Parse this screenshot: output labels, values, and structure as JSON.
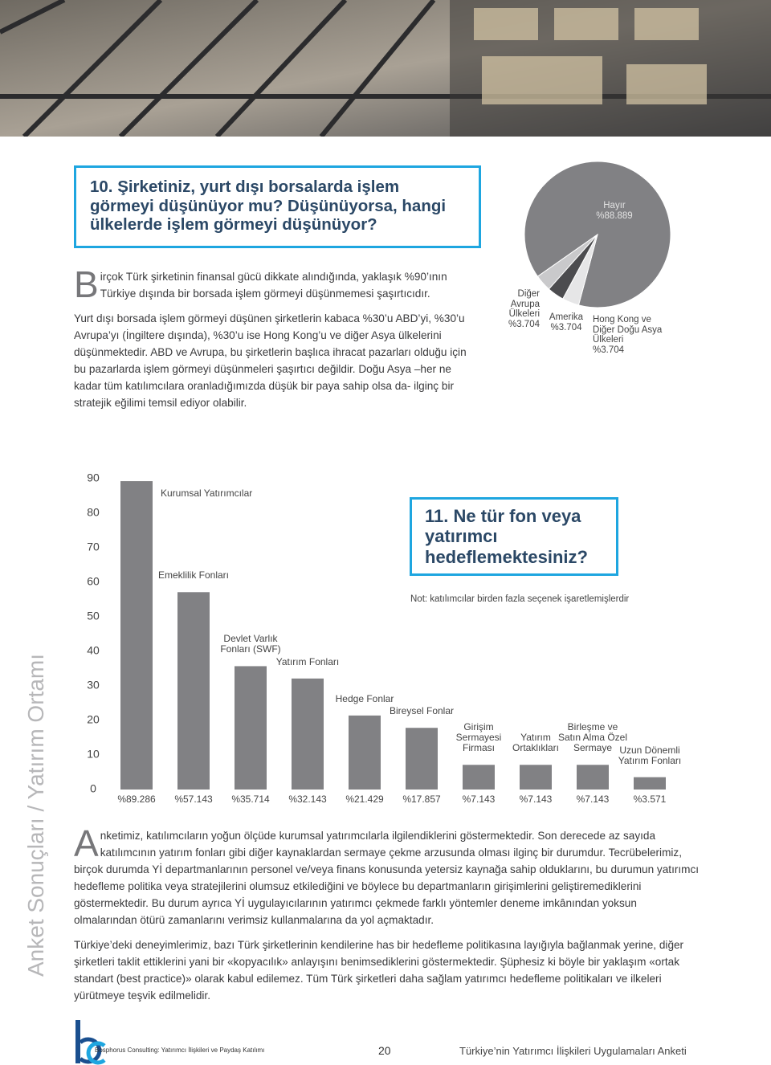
{
  "question10": {
    "title": "10. Şirketiniz, yurt dışı borsalarda işlem görmeyi düşünüyor mu? Düşünüyorsa, hangi ülkelerde işlem görmeyi düşünüyor?",
    "paragraphs": [
      "Birçok Türk şirketinin finansal gücü dikkate alındığında, yaklaşık %90’ının Türkiye dışında bir borsada işlem görmeyi düşünmemesi şaşırtıcıdır.",
      "Yurt dışı borsada işlem görmeyi düşünen şirketlerin kabaca %30’u ABD’yi, %30’u Avrupa’yı (İngiltere dışında), %30’u ise Hong Kong’u ve diğer Asya ülkelerini düşünmektedir. ABD ve Avrupa, bu şirketlerin başlıca ihracat pazarları olduğu için bu pazarlarda işlem görmeyi düşünmeleri şaşırtıcı değildir. Doğu Asya –her ne kadar tüm katılımcılara oranladığımızda düşük bir paya sahip olsa da- ilginç bir stratejik eğilimi temsil ediyor olabilir."
    ]
  },
  "chart_data": [
    {
      "type": "pie",
      "categories": [
        "Hayır",
        "Diğer Avrupa Ülkeleri",
        "Amerika",
        "Hong Kong ve Diğer Doğu Asya Ülkeleri"
      ],
      "values": [
        88.889,
        3.704,
        3.704,
        3.704
      ],
      "value_labels": [
        "%88.889",
        "%3.704",
        "%3.704",
        "%3.704"
      ],
      "colors": [
        "#818184",
        "#c9c9cb",
        "#4c4c4f",
        "#e6e6e7"
      ]
    },
    {
      "type": "bar",
      "categories": [
        "Kurumsal Yatırımcılar",
        "Emeklilik Fonları",
        "Devlet Varlık Fonları (SWF)",
        "Yatırım Fonları",
        "Hedge Fonlar",
        "Bireysel Fonlar",
        "Girişim Sermayesi Firması",
        "Yatırım Ortaklıkları",
        "Birleşme ve Satın Alma Özel Sermaye",
        "Uzun Dönemli Yatırım Fonları"
      ],
      "values": [
        89.286,
        57.143,
        35.714,
        32.143,
        21.429,
        17.857,
        7.143,
        7.143,
        7.143,
        3.571
      ],
      "value_labels": [
        "%89.286",
        "%57.143",
        "%35.714",
        "%32.143",
        "%21.429",
        "%17.857",
        "%7.143",
        "%7.143",
        "%7.143",
        "%3.571"
      ],
      "color": "#818184",
      "ylim": [
        0,
        90
      ],
      "yticks": [
        0,
        10,
        20,
        30,
        40,
        50,
        60,
        70,
        80,
        90
      ]
    }
  ],
  "question11": {
    "title": "11. Ne tür fon veya yatırımcı hedeflemektesiniz?",
    "note": "Not: katılımcılar birden fazla seçenek işaretlemişlerdir",
    "paragraphs": [
      "Anketimiz, katılımcıların yoğun ölçüde kurumsal yatırımcılarla ilgilendiklerini göstermektedir. Son derecede az sayıda katılımcının yatırım fonları gibi diğer kaynaklardan sermaye çekme arzusunda olması ilginç bir durumdur. Tecrübelerimiz, birçok durumda Yİ departmanlarının personel ve/veya finans konusunda yetersiz kaynağa sahip olduklarını, bu durumun yatırımcı hedefleme politika veya stratejilerini olumsuz etkilediğini ve böylece bu departmanların girişimlerini geliştiremediklerini göstermektedir. Bu durum ayrıca Yİ uygulayıcılarının yatırımcı çekmede farklı yöntemler deneme imkânından yoksun olmalarından ötürü zamanlarını verimsiz kullanmalarına da yol açmaktadır.",
      "Türkiye’deki deneyimlerimiz, bazı Türk şirketlerinin kendilerine has bir hedefleme politikasına layığıyla bağlanmak yerine, diğer şirketleri taklit ettiklerini yani bir «kopyacılık» anlayışını benimsediklerini göstermektedir. Şüphesiz ki böyle bir yaklaşım «ortak standart (best practice)» olarak kabul edilemez. Tüm Türk şirketleri daha sağlam yatırımcı hedefleme politikaları ve ilkeleri yürütmeye teşvik edilmelidir."
    ]
  },
  "side_title": "Anket Sonuçları / Yatırım Ortamı",
  "footer": {
    "company": "Bosphorus Consulting: Yatırımcı İlişkileri ve Paydaş Katılımı",
    "page_number": "20",
    "report_title": "Türkiye’nin Yatırımcı İlişkileri Uygulamaları Anketi"
  }
}
